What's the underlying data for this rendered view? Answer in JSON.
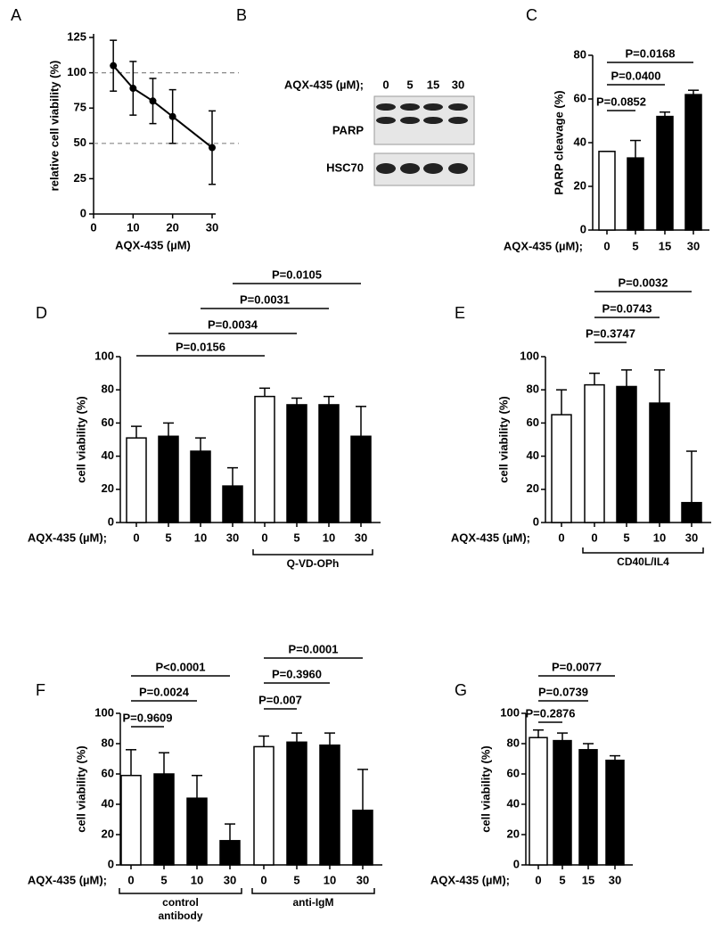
{
  "chart_data": [
    {
      "type": "line",
      "panel": "A",
      "x": [
        5,
        10,
        15,
        20,
        30
      ],
      "values": [
        105,
        89,
        80,
        69,
        47
      ],
      "errors": [
        18,
        19,
        16,
        19,
        26
      ],
      "color": "#000000",
      "xlim": [
        0,
        30
      ],
      "xticks": [
        0,
        10,
        20,
        30
      ],
      "ylim": [
        0,
        125
      ],
      "yticks": [
        0,
        25,
        50,
        75,
        100,
        125
      ],
      "reference_lines": [
        100,
        50
      ],
      "xlabel": "AQX-435 (µM)",
      "ylabel": "relative cell viability (%)"
    },
    {
      "type": "bar",
      "panel": "C",
      "categories": [
        "0",
        "5",
        "15",
        "30"
      ],
      "values": [
        36,
        33,
        52,
        62
      ],
      "errors": [
        0,
        8,
        2,
        2
      ],
      "colors": [
        "#ffffff",
        "#000000",
        "#000000",
        "#000000"
      ],
      "ylim": [
        0,
        80
      ],
      "yticks": [
        0,
        20,
        40,
        60,
        80
      ],
      "ylabel": "PARP cleavage (%)",
      "xlabel": "AQX-435 (µM);",
      "comparisons": [
        {
          "label": "P=0.0852",
          "from": 0,
          "to": 1
        },
        {
          "label": "P=0.0400",
          "from": 0,
          "to": 2
        },
        {
          "label": "P=0.0168",
          "from": 0,
          "to": 3
        }
      ]
    },
    {
      "type": "bar",
      "panel": "D",
      "categories": [
        "0",
        "5",
        "10",
        "30",
        "0",
        "5",
        "10",
        "30"
      ],
      "values": [
        51,
        52,
        43,
        22,
        76,
        71,
        71,
        52
      ],
      "errors": [
        7,
        8,
        8,
        11,
        5,
        4,
        5,
        18
      ],
      "colors": [
        "#ffffff",
        "#000000",
        "#000000",
        "#000000",
        "#ffffff",
        "#000000",
        "#000000",
        "#000000"
      ],
      "ylim": [
        0,
        100
      ],
      "yticks": [
        0,
        20,
        40,
        60,
        80,
        100
      ],
      "ylabel": "cell viability (%)",
      "xlabel": "AQX-435 (µM);",
      "comparisons": [
        {
          "label": "P=0.0156",
          "from": 0,
          "to": 4
        },
        {
          "label": "P=0.0034",
          "from": 1,
          "to": 5
        },
        {
          "label": "P=0.0031",
          "from": 2,
          "to": 6
        },
        {
          "label": "P=0.0105",
          "from": 3,
          "to": 7
        }
      ],
      "groups": [
        {
          "label": "Q-VD-OPh",
          "from": 4,
          "to": 7
        }
      ]
    },
    {
      "type": "bar",
      "panel": "E",
      "categories": [
        "0",
        "0",
        "5",
        "10",
        "30"
      ],
      "values": [
        65,
        83,
        82,
        72,
        12
      ],
      "errors": [
        15,
        7,
        10,
        20,
        31
      ],
      "colors": [
        "#ffffff",
        "#ffffff",
        "#000000",
        "#000000",
        "#000000"
      ],
      "ylim": [
        0,
        100
      ],
      "yticks": [
        0,
        20,
        40,
        60,
        80,
        100
      ],
      "ylabel": "cell viability (%)",
      "xlabel": "AQX-435 (µM);",
      "comparisons": [
        {
          "label": "P=0.3747",
          "from": 1,
          "to": 2
        },
        {
          "label": "P=0.0743",
          "from": 1,
          "to": 3
        },
        {
          "label": "P=0.0032",
          "from": 1,
          "to": 4
        }
      ],
      "groups": [
        {
          "label": "CD40L/IL4",
          "from": 1,
          "to": 4
        }
      ]
    },
    {
      "type": "bar",
      "panel": "F",
      "categories": [
        "0",
        "5",
        "10",
        "30",
        "0",
        "5",
        "10",
        "30"
      ],
      "values": [
        59,
        60,
        44,
        16,
        78,
        81,
        79,
        36
      ],
      "errors": [
        17,
        14,
        15,
        11,
        7,
        6,
        8,
        27
      ],
      "colors": [
        "#ffffff",
        "#000000",
        "#000000",
        "#000000",
        "#ffffff",
        "#000000",
        "#000000",
        "#000000"
      ],
      "ylim": [
        0,
        100
      ],
      "yticks": [
        0,
        20,
        40,
        60,
        80,
        100
      ],
      "ylabel": "cell viability (%)",
      "xlabel": "AQX-435 (µM);",
      "comparisons": [
        {
          "label": "P=0.9609",
          "from": 0,
          "to": 1
        },
        {
          "label": "P=0.0024",
          "from": 0,
          "to": 2
        },
        {
          "label": "P<0.0001",
          "from": 0,
          "to": 3
        },
        {
          "label": "P=0.007",
          "from": 4,
          "to": 5
        },
        {
          "label": "P=0.3960",
          "from": 4,
          "to": 6
        },
        {
          "label": "P=0.0001",
          "from": 4,
          "to": 7
        }
      ],
      "groups": [
        {
          "label": "control antibody",
          "from": 0,
          "to": 3
        },
        {
          "label": "anti-IgM",
          "from": 4,
          "to": 7
        }
      ]
    },
    {
      "type": "bar",
      "panel": "G",
      "categories": [
        "0",
        "5",
        "15",
        "30"
      ],
      "values": [
        84,
        82,
        76,
        69
      ],
      "errors": [
        5,
        5,
        4,
        3
      ],
      "colors": [
        "#ffffff",
        "#000000",
        "#000000",
        "#000000"
      ],
      "ylim": [
        0,
        100
      ],
      "yticks": [
        0,
        20,
        40,
        60,
        80,
        100
      ],
      "ylabel": "cell viability (%)",
      "xlabel": "AQX-435 (µM);",
      "comparisons": [
        {
          "label": "P=0.2876",
          "from": 0,
          "to": 1
        },
        {
          "label": "P=0.0739",
          "from": 0,
          "to": 2
        },
        {
          "label": "P=0.0077",
          "from": 0,
          "to": 3
        }
      ]
    }
  ],
  "blot": {
    "panel": "B",
    "xlabel": "AQX-435 (µM);",
    "lanes": [
      "0",
      "5",
      "15",
      "30"
    ],
    "rows": [
      "PARP",
      "HSC70"
    ]
  }
}
